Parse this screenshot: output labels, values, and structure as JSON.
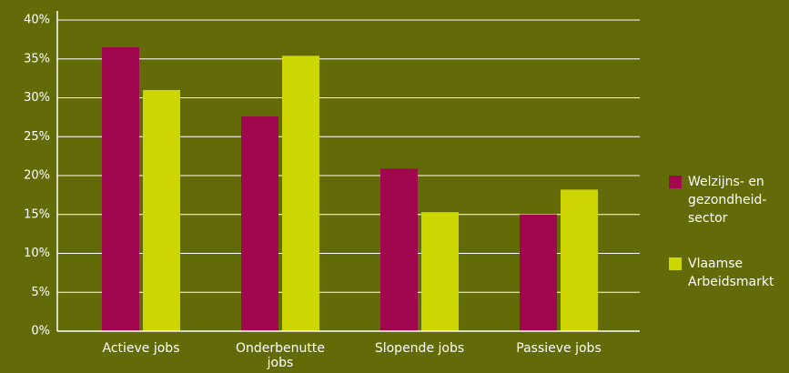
{
  "chart_data": {
    "type": "bar",
    "categories": [
      "Actieve jobs",
      "Onderbenutte jobs",
      "Slopende jobs",
      "Passieve jobs"
    ],
    "series": [
      {
        "name": "Welzijns- en gezondheid-sector",
        "color": "#a1074f",
        "values": [
          36.5,
          27.6,
          20.9,
          15.0
        ]
      },
      {
        "name": "Vlaamse Arbeidsmarkt",
        "color": "#cdd600",
        "values": [
          31.0,
          35.4,
          15.3,
          18.2
        ]
      }
    ],
    "ylim": [
      0,
      40
    ],
    "yticks": [
      {
        "value": 0,
        "label": "0%"
      },
      {
        "value": 5,
        "label": "5%"
      },
      {
        "value": 10,
        "label": "10%"
      },
      {
        "value": 15,
        "label": "15%"
      },
      {
        "value": 20,
        "label": "20%"
      },
      {
        "value": 25,
        "label": "25%"
      },
      {
        "value": 30,
        "label": "30%"
      },
      {
        "value": 35,
        "label": "35%"
      },
      {
        "value": 40,
        "label": "40%"
      }
    ],
    "grid": true,
    "legend": "right"
  }
}
